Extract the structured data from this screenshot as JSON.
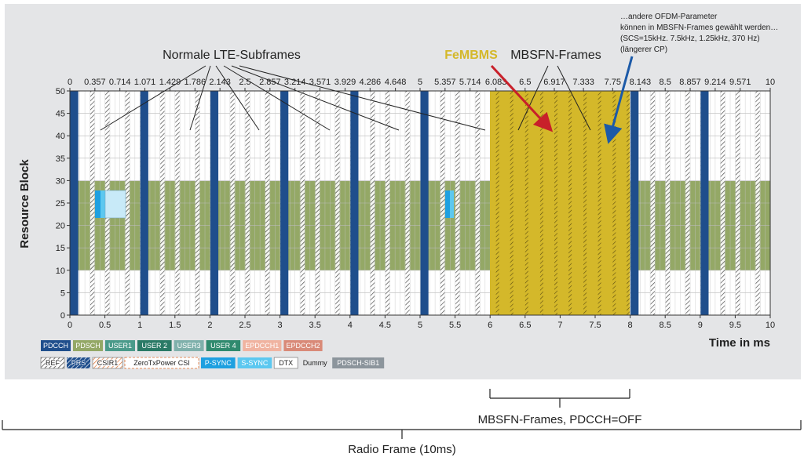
{
  "annotations": {
    "normal": "Normale LTE-Subframes",
    "femb": "FeMBMS",
    "mbsfn": "MBSFN-Frames",
    "note_lines": [
      "…andere OFDM-Parameter",
      "können in MBSFN-Frames gewählt werden…",
      "(SCS=15kHz. 7.5kHz, 1.25kHz, 370 Hz)",
      "(längerer CP)"
    ]
  },
  "axes": {
    "y_label": "Resource Block",
    "x_label": "Time in ms",
    "y_ticks": [
      "0",
      "5",
      "10",
      "15",
      "20",
      "25",
      "30",
      "35",
      "40",
      "45",
      "50"
    ],
    "x_ticks": [
      "0",
      "0.5",
      "1",
      "1.5",
      "2",
      "2.5",
      "3",
      "3.5",
      "4",
      "4.5",
      "5",
      "5.5",
      "6",
      "6.5",
      "7",
      "7.5",
      "8",
      "8.5",
      "9",
      "9.5",
      "10"
    ],
    "top_ticks": [
      "0",
      "0.357",
      "0.714",
      "1.071",
      "1.429",
      "1.786",
      "2.143",
      "2.5",
      "2.857",
      "3.214",
      "3.571",
      "3.929",
      "4.286",
      "4.648",
      "5",
      "5.357",
      "5.714",
      "6.083",
      "6.5",
      "6.917",
      "7.333",
      "7.75",
      "8.143",
      "8.5",
      "8.857",
      "9.214",
      "9.571",
      "10"
    ]
  },
  "legend_row1": [
    {
      "label": "PDCCH",
      "bg": "#1f4e8c",
      "fg": "#ffffff"
    },
    {
      "label": "PDSCH",
      "bg": "#94a866",
      "fg": "#ffffff"
    },
    {
      "label": "USER1",
      "bg": "#4a9a8a",
      "fg": "#ffffff"
    },
    {
      "label": "USER 2",
      "bg": "#2a7a66",
      "fg": "#ffffff"
    },
    {
      "label": "USER3",
      "bg": "#7fb0ab",
      "fg": "#ffffff"
    },
    {
      "label": "USER 4",
      "bg": "#2f8a6e",
      "fg": "#ffffff"
    },
    {
      "label": "EPDCCH1",
      "bg": "#f0b3a0",
      "fg": "#ffffff"
    },
    {
      "label": "EPDCCH2",
      "bg": "#d98a78",
      "fg": "#ffffff"
    }
  ],
  "legend_row2": [
    {
      "label": "REF",
      "bg": "#ffffff",
      "fg": "#222222",
      "pattern": "hatch-black"
    },
    {
      "label": "PRS",
      "bg": "#1f4e8c",
      "fg": "#ffffff",
      "pattern": "hatch-white"
    },
    {
      "label": "CSIR1",
      "bg": "#ffffff",
      "fg": "#222222",
      "pattern": "hatch-orange"
    },
    {
      "label": "ZeroTxPower CSI",
      "bg": "#ffffff",
      "fg": "#222222",
      "pattern": "dash-orange"
    },
    {
      "label": "P-SYNC",
      "bg": "#1ea0e0",
      "fg": "#ffffff"
    },
    {
      "label": "S-SYNC",
      "bg": "#5cc8f0",
      "fg": "#ffffff"
    },
    {
      "label": "DTX",
      "bg": "#ffffff",
      "fg": "#222222"
    },
    {
      "label": "Dummy",
      "bg": "#e4e5e7",
      "fg": "#222222"
    },
    {
      "label": "PDSCH-SIB1",
      "bg": "#8c959c",
      "fg": "#ffffff"
    }
  ],
  "brackets": {
    "mbsfn_label": "MBSFN-Frames, PDCCH=OFF",
    "radio_label": "Radio Frame (10ms)"
  },
  "colors": {
    "pdcch": "#1f4e8c",
    "pdsch": "#94a866",
    "mbsfn": "#d4b82a",
    "femb_text": "#d4b82a",
    "arrow_red": "#c8202a",
    "arrow_blue": "#1c5aa8",
    "sync_p": "#1ea0e0",
    "sync_s": "#c8eaf8"
  }
}
